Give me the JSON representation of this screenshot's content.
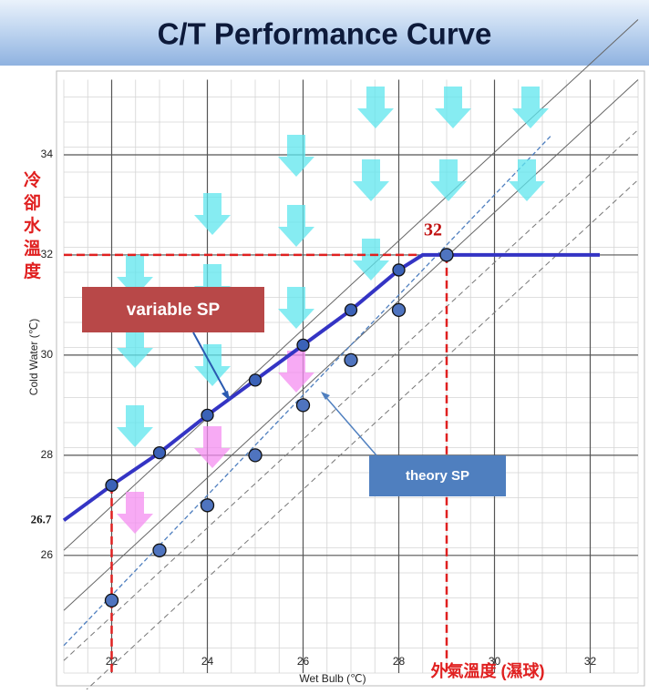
{
  "chart_data": {
    "type": "line",
    "title": "C/T Performance Curve",
    "x_label": "Wet Bulb (℃)",
    "y_label": "Cold Water (℃)",
    "x_label_zh": "外氣溫度 (濕球)",
    "y_label_zh": "冷卻水溫度",
    "xlim": [
      21,
      33
    ],
    "ylim": [
      23.65,
      35.5
    ],
    "xticks": [
      22,
      24,
      26,
      28,
      30,
      32
    ],
    "yticks": [
      26,
      28,
      30,
      32,
      34
    ],
    "grid": true,
    "series": [
      {
        "name": "variable SP",
        "color": "#3434c4",
        "x": [
          21,
          22,
          23,
          24,
          25,
          26,
          27,
          28,
          28.5,
          29,
          32.2
        ],
        "values": [
          26.7,
          27.4,
          28.05,
          28.8,
          29.5,
          30.2,
          30.9,
          31.7,
          32,
          32,
          32
        ]
      },
      {
        "name": "theory SP",
        "color": "#4f7fbf",
        "x": [
          22,
          23,
          24,
          25,
          26,
          27,
          28,
          29
        ],
        "values": [
          25.1,
          26.1,
          27.0,
          28.0,
          29.0,
          29.9,
          30.9,
          32
        ]
      }
    ],
    "annotations": [
      {
        "label": "32",
        "value": 32
      },
      {
        "label": "26.7",
        "value": 26.7
      }
    ]
  }
}
